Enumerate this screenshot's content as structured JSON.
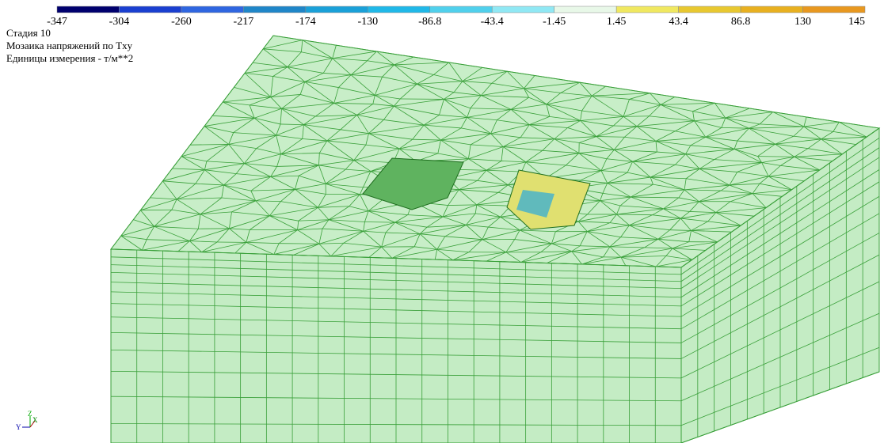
{
  "legend": {
    "labels": [
      "-347",
      "-304",
      "-260",
      "-217",
      "-174",
      "-130",
      "-86.8",
      "-43.4",
      "-1.45",
      "1.45",
      "43.4",
      "86.8",
      "130",
      "145"
    ],
    "colors": [
      "#00006e",
      "#1a3fd0",
      "#2f66e0",
      "#1f86c8",
      "#1aa0d8",
      "#20b8e8",
      "#50d0ec",
      "#90e8f4",
      "#e8f8e8",
      "#f0e860",
      "#e8c830",
      "#e8b020",
      "#e89820"
    ]
  },
  "info": {
    "lines": [
      "Стадия 10",
      "Мозаика напряжений по Txy",
      "Единицы измерения - т/м**2"
    ]
  },
  "axes_icon": {
    "z": "Z",
    "y": "Y",
    "x": "X"
  }
}
